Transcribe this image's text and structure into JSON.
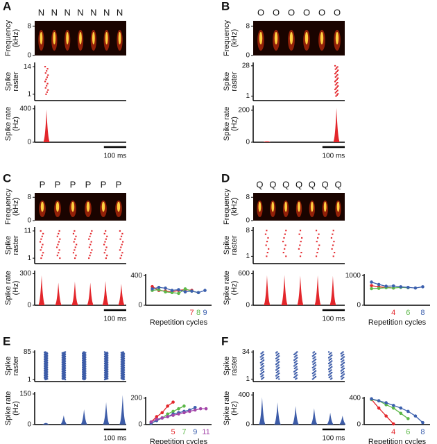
{
  "chart_data": [
    {
      "type": "spectrogram",
      "panel": "A",
      "syllables": [
        "N",
        "N",
        "N",
        "N",
        "N",
        "N",
        "N"
      ],
      "ylabel": [
        "Frequency",
        "(kHz)"
      ],
      "ylim": [
        0,
        9.5
      ],
      "yticks": [
        0,
        8
      ]
    },
    {
      "type": "raster",
      "ylabel": [
        "Spike",
        "raster"
      ],
      "xlim": [
        0,
        410
      ],
      "ylim": [
        -2,
        16
      ],
      "yticks": [
        1,
        14
      ],
      "bursts": [
        53
      ],
      "color": "#e3262b"
    },
    {
      "type": "rate",
      "ylabel": [
        "Spike rate",
        "(Hz)"
      ],
      "xlim": [
        0,
        410
      ],
      "ylim": [
        0,
        440
      ],
      "yticks": [
        0,
        400
      ],
      "x": [
        53
      ],
      "values": [
        390
      ],
      "color": "#e3262b",
      "scalebar": {
        "value": 100,
        "label": "100 ms"
      }
    },
    {
      "type": "spectrogram",
      "panel": "B",
      "syllables": [
        "O",
        "O",
        "O",
        "O",
        "O",
        "O"
      ],
      "ylabel": [
        "Frequency",
        "(kHz)"
      ],
      "ylim": [
        0,
        9.5
      ],
      "yticks": [
        0,
        8
      ]
    },
    {
      "type": "raster",
      "ylabel": [
        "Spike",
        "raster"
      ],
      "xlim": [
        0,
        410
      ],
      "ylim": [
        -3,
        31
      ],
      "yticks": [
        1,
        28
      ],
      "bursts": [
        373
      ],
      "color": "#e3262b"
    },
    {
      "type": "rate",
      "ylabel": [
        "Spike rate",
        "(Hz)"
      ],
      "xlim": [
        0,
        410
      ],
      "ylim": [
        0,
        230
      ],
      "yticks": [
        0,
        200
      ],
      "x": [
        62,
        373
      ],
      "values": [
        5,
        215
      ],
      "color": "#e3262b",
      "scalebar": {
        "value": 100,
        "label": "100 ms"
      }
    },
    {
      "type": "spectrogram",
      "panel": "C",
      "syllables": [
        "P",
        "P",
        "P",
        "P",
        "P",
        "P"
      ],
      "ylabel": [
        "Frequency",
        "(kHz)"
      ],
      "ylim": [
        0,
        9.5
      ],
      "yticks": [
        0,
        8
      ]
    },
    {
      "type": "raster",
      "ylabel": [
        "Spike",
        "raster"
      ],
      "xlim": [
        0,
        410
      ],
      "ylim": [
        -1,
        12.5
      ],
      "yticks": [
        1,
        11
      ],
      "bursts": [
        31,
        106,
        180,
        249,
        317,
        388
      ],
      "color": "#e3262b"
    },
    {
      "type": "rate",
      "ylabel": [
        "Spike rate",
        "(Hz)"
      ],
      "xlim": [
        0,
        410
      ],
      "ylim": [
        0,
        330
      ],
      "yticks": [
        0,
        300
      ],
      "x": [
        31,
        106,
        180,
        249,
        317,
        388
      ],
      "values": [
        285,
        215,
        225,
        215,
        230,
        205
      ],
      "color": "#e3262b",
      "scalebar": {
        "value": 100,
        "label": "100 ms"
      }
    },
    {
      "type": "repetition",
      "xlabel": "Repetition cycles",
      "xlim": [
        0,
        10
      ],
      "ylim": [
        0,
        420
      ],
      "yticks": [
        0,
        400
      ],
      "series": [
        {
          "name": "7",
          "color": "#e3262b",
          "x": [
            1,
            2,
            3,
            4,
            5,
            6,
            7
          ],
          "values": [
            250,
            200,
            190,
            180,
            200,
            210,
            200
          ]
        },
        {
          "name": "8",
          "color": "#5cb848",
          "x": [
            1,
            2,
            3,
            4,
            5,
            6,
            7,
            8
          ],
          "values": [
            200,
            210,
            180,
            170,
            160,
            220,
            190,
            170
          ]
        },
        {
          "name": "9",
          "color": "#3b5fad",
          "x": [
            1,
            2,
            3,
            4,
            5,
            6,
            7,
            8,
            9
          ],
          "values": [
            220,
            240,
            230,
            200,
            210,
            180,
            190,
            170,
            200
          ]
        }
      ]
    },
    {
      "type": "spectrogram",
      "panel": "D",
      "syllables": [
        "Q",
        "Q",
        "Q",
        "Q",
        "Q",
        "Q",
        "Q"
      ],
      "ylabel": [
        "Frequency",
        "(kHz)"
      ],
      "ylim": [
        0,
        9.5
      ],
      "yticks": [
        0,
        8
      ]
    },
    {
      "type": "raster",
      "ylabel": [
        "Spike",
        "raster"
      ],
      "xlim": [
        0,
        410
      ],
      "ylim": [
        -1,
        9
      ],
      "yticks": [
        1,
        8
      ],
      "bursts": [
        62,
        140,
        211,
        289,
        357
      ],
      "color": "#e3262b"
    },
    {
      "type": "rate",
      "ylabel": [
        "Spike rate",
        "(Hz)"
      ],
      "xlim": [
        0,
        410
      ],
      "ylim": [
        0,
        660
      ],
      "yticks": [
        0,
        600
      ],
      "x": [
        62,
        140,
        211,
        289,
        357
      ],
      "values": [
        570,
        575,
        565,
        570,
        560
      ],
      "color": "#e3262b",
      "scalebar": {
        "value": 100,
        "label": "100 ms"
      }
    },
    {
      "type": "repetition",
      "xlabel": "Repetition cycles",
      "xlim": [
        0,
        9
      ],
      "ylim": [
        0,
        1050
      ],
      "yticks": [
        0,
        1000
      ],
      "series": [
        {
          "name": "4",
          "color": "#e3262b",
          "x": [
            1,
            2,
            3,
            4
          ],
          "values": [
            660,
            620,
            600,
            580
          ]
        },
        {
          "name": "6",
          "color": "#5cb848",
          "x": [
            1,
            2,
            3,
            4,
            5,
            6
          ],
          "values": [
            560,
            570,
            590,
            580,
            600,
            590
          ]
        },
        {
          "name": "8",
          "color": "#3b5fad",
          "x": [
            1,
            2,
            3,
            4,
            5,
            6,
            7,
            8
          ],
          "values": [
            780,
            700,
            640,
            650,
            620,
            600,
            580,
            620
          ]
        }
      ]
    },
    {
      "type": "raster",
      "panel": "E",
      "ylabel": [
        "Spike",
        "raster"
      ],
      "xlim": [
        0,
        410
      ],
      "ylim": [
        -5,
        90
      ],
      "yticks": [
        1,
        85
      ],
      "bursts": [
        50,
        130,
        221,
        320,
        394
      ],
      "color": "#3d5ca8"
    },
    {
      "type": "rate",
      "ylabel": [
        "Spike rate",
        "(Hz)"
      ],
      "xlim": [
        0,
        410
      ],
      "ylim": [
        0,
        160
      ],
      "yticks": [
        0,
        150
      ],
      "x": [
        50,
        130,
        221,
        320,
        394
      ],
      "values": [
        8,
        45,
        75,
        110,
        145
      ],
      "color": "#3d5ca8",
      "scalebar": {
        "value": 100,
        "label": "100 ms"
      }
    },
    {
      "type": "repetition",
      "xlabel": "Repetition cycles",
      "xlim": [
        0,
        12
      ],
      "ylim": [
        0,
        210
      ],
      "yticks": [
        0,
        200
      ],
      "series": [
        {
          "name": "5",
          "color": "#e3262b",
          "x": [
            1,
            2,
            3,
            4,
            5
          ],
          "values": [
            20,
            60,
            90,
            140,
            170
          ]
        },
        {
          "name": "7",
          "color": "#5cb848",
          "x": [
            1,
            2,
            3,
            4,
            5,
            6,
            7
          ],
          "values": [
            10,
            30,
            50,
            80,
            100,
            120,
            140
          ]
        },
        {
          "name": "9",
          "color": "#3b5fad",
          "x": [
            1,
            2,
            3,
            4,
            5,
            6,
            7,
            8,
            9
          ],
          "values": [
            10,
            30,
            50,
            60,
            80,
            90,
            100,
            110,
            130
          ]
        },
        {
          "name": "11",
          "color": "#a345a8",
          "x": [
            1,
            2,
            3,
            4,
            5,
            6,
            7,
            8,
            9,
            10,
            11
          ],
          "values": [
            20,
            40,
            50,
            60,
            70,
            80,
            90,
            100,
            110,
            120,
            120
          ]
        }
      ]
    },
    {
      "type": "raster",
      "panel": "F",
      "ylabel": [
        "Spike",
        "raster"
      ],
      "xlim": [
        0,
        410
      ],
      "ylim": [
        -2,
        36
      ],
      "yticks": [
        1,
        34
      ],
      "bursts": [
        40,
        109,
        190,
        273,
        345,
        400
      ],
      "color": "#3d5ca8"
    },
    {
      "type": "rate",
      "ylabel": [
        "Spike rate",
        "(Hz)"
      ],
      "xlim": [
        0,
        410
      ],
      "ylim": [
        0,
        440
      ],
      "yticks": [
        0,
        400
      ],
      "x": [
        40,
        109,
        190,
        273,
        345,
        400
      ],
      "values": [
        370,
        300,
        250,
        220,
        160,
        120
      ],
      "color": "#3d5ca8",
      "scalebar": {
        "value": 100,
        "label": "100 ms"
      }
    },
    {
      "type": "repetition",
      "xlabel": "Repetition cycles",
      "xlim": [
        0,
        9
      ],
      "ylim": [
        0,
        420
      ],
      "yticks": [
        0,
        400
      ],
      "series": [
        {
          "name": "4",
          "color": "#e3262b",
          "x": [
            1,
            2,
            3,
            4
          ],
          "values": [
            380,
            250,
            130,
            10
          ]
        },
        {
          "name": "6",
          "color": "#5cb848",
          "x": [
            1,
            2,
            3,
            4,
            5,
            6
          ],
          "values": [
            380,
            360,
            300,
            250,
            170,
            90
          ]
        },
        {
          "name": "8",
          "color": "#3b5fad",
          "x": [
            1,
            2,
            3,
            4,
            5,
            6,
            7,
            8
          ],
          "values": [
            390,
            360,
            330,
            290,
            250,
            200,
            130,
            30
          ]
        }
      ]
    }
  ]
}
